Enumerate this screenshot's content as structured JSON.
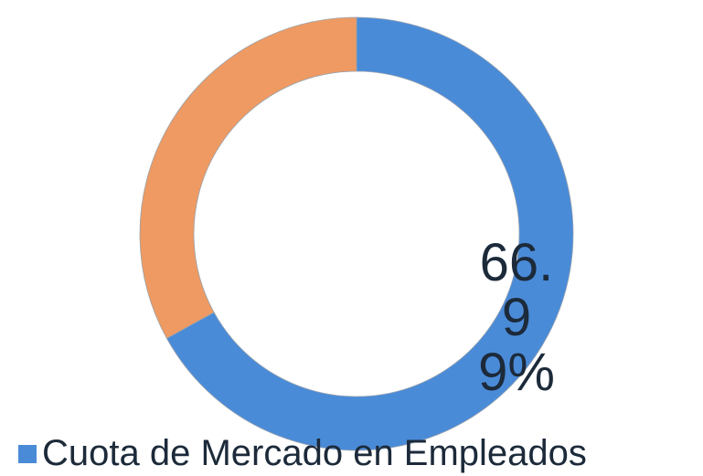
{
  "chart_data": {
    "type": "donut",
    "categories": [
      "Cuota de Mercado en Empleados",
      null
    ],
    "values": [
      66.99,
      33.01
    ],
    "value_labels": [
      "66.99%",
      null
    ],
    "colors": [
      "#4a8bd8",
      "#ee9a62"
    ],
    "legend": "bottom"
  }
}
